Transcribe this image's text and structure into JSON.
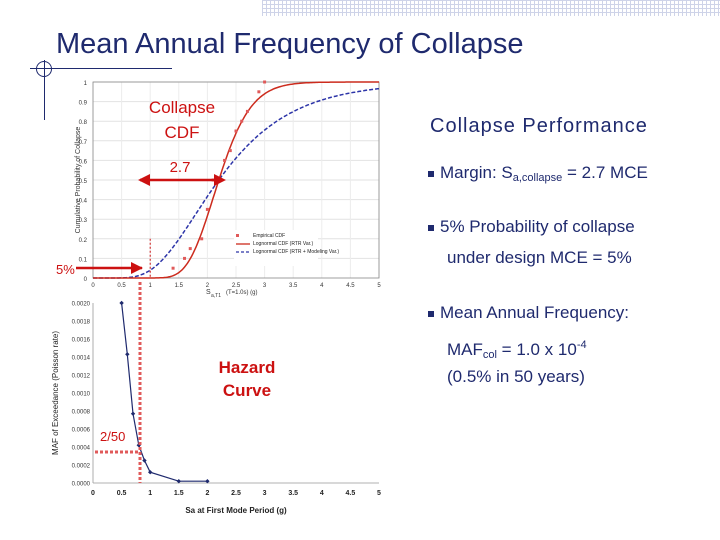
{
  "slide": {
    "title": "Mean Annual Frequency of Collapse",
    "perf_title": "Collapse Performance",
    "bullets": {
      "margin_pre": "Margin: S",
      "margin_sub": "a,collapse",
      "margin_post": " = 2.7 MCE",
      "prob_line1": "5% Probability of collapse",
      "prob_line2": "under design MCE = 5%",
      "maf_line1": "Mean Annual Frequency:",
      "maf_pre": "MAF",
      "maf_sub": "col",
      "maf_mid": " = 1.0 x 10",
      "maf_sup": "-4",
      "maf_line3": "(0.5% in 50 years)"
    }
  },
  "colors": {
    "title": "#1f2a6e",
    "annotation_red": "#cc1111",
    "empirical": "#e05a5a",
    "lognormal_rtr": "#cc2b1d",
    "lognormal_mod": "#2c34a8",
    "hazard": "#1f2a6e",
    "mce_dotted": "#e05a5a"
  },
  "chart_data": [
    {
      "type": "line",
      "ylabel": "Cumulative Probability of Collapse",
      "xlabel_main": "S",
      "xlabel_sub": "a,T1",
      "xlabel_suffix": "(T=1.0s) (g)",
      "xlim": [
        0,
        5
      ],
      "ylim": [
        0,
        1
      ],
      "x_ticks": [
        "0",
        "0.5",
        "1",
        "1.5",
        "2",
        "2.5",
        "3",
        "3.5",
        "4",
        "4.5",
        "5"
      ],
      "y_ticks": [
        "0",
        "0.1",
        "0.2",
        "0.3",
        "0.4",
        "0.5",
        "0.6",
        "0.7",
        "0.8",
        "0.9",
        "1"
      ],
      "legend": [
        "Empirical CDF",
        "Lognormal CDF (RTR Var.)",
        "Lognormal CDF (RTR + Modeling Var.)"
      ],
      "empirical_points": [
        [
          1.4,
          0.05
        ],
        [
          1.6,
          0.1
        ],
        [
          1.7,
          0.15
        ],
        [
          1.9,
          0.2
        ],
        [
          2.0,
          0.35
        ],
        [
          2.1,
          0.5
        ],
        [
          2.3,
          0.6
        ],
        [
          2.4,
          0.65
        ],
        [
          2.5,
          0.75
        ],
        [
          2.6,
          0.8
        ],
        [
          2.7,
          0.85
        ],
        [
          2.9,
          0.95
        ],
        [
          3.0,
          1.0
        ]
      ],
      "lognormal_rtr": {
        "median": 2.2,
        "beta": 0.2
      },
      "lognormal_rtr_modeling": {
        "median": 2.2,
        "beta": 0.45
      },
      "annotations": {
        "cdf_label": "Collapse\nCDF",
        "margin_label": "2.7",
        "prob_label": "5%"
      }
    },
    {
      "type": "line",
      "ylabel": "MAF of Exceedance (Poisson rate)",
      "xlabel": "Sa at First Mode Period (g)",
      "xlim": [
        0,
        5
      ],
      "ylim": [
        0,
        0.002
      ],
      "x_ticks": [
        "0",
        "0.5",
        "1",
        "1.5",
        "2",
        "2.5",
        "3",
        "3.5",
        "4",
        "4.5",
        "5"
      ],
      "y_ticks": [
        "0.0000",
        "0.0002",
        "0.0004",
        "0.0006",
        "0.0008",
        "0.0010",
        "0.0012",
        "0.0014",
        "0.0016",
        "0.0018",
        "0.0020"
      ],
      "x": [
        0.5,
        0.6,
        0.7,
        0.8,
        0.9,
        1.0,
        1.5,
        2.0
      ],
      "y": [
        0.002,
        0.00143,
        0.00077,
        0.00042,
        0.00025,
        0.00012,
        2e-05,
        2e-05
      ],
      "annotations": {
        "hazard_label": "Hazard\nCurve",
        "mce_label": "2/50"
      }
    }
  ]
}
